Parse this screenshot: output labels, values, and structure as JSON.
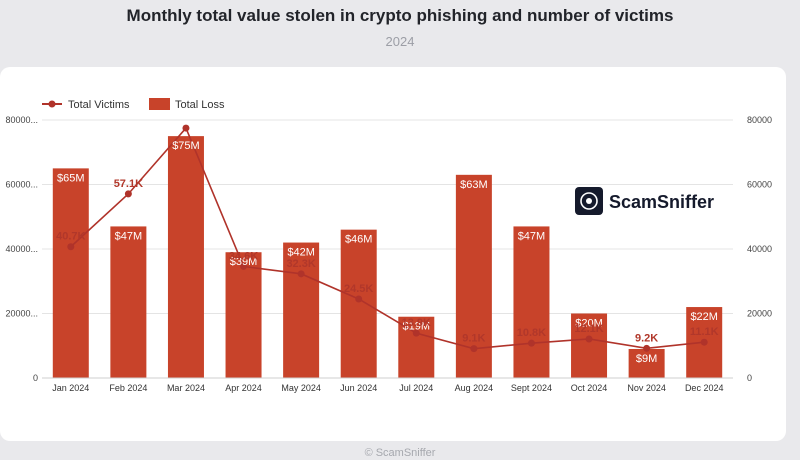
{
  "header": {
    "title": "Monthly total value stolen in crypto phishing and number of victims",
    "subtitle": "2024"
  },
  "footer": {
    "text": "© ScamSniffer"
  },
  "brand": {
    "name": "ScamSniffer",
    "icon": "scamsniffer-logo-icon"
  },
  "colors": {
    "bar": "#c8432a",
    "line": "#b0332a",
    "grid": "#e4e4e4",
    "background": "#e9e9ec"
  },
  "chart_data": {
    "type": "bar",
    "categories": [
      "Jan 2024",
      "Feb 2024",
      "Mar 2024",
      "Apr 2024",
      "May 2024",
      "Jun 2024",
      "Jul 2024",
      "Aug 2024",
      "Sept 2024",
      "Oct 2024",
      "Nov 2024",
      "Dec 2024"
    ],
    "series": [
      {
        "name": "Total Loss",
        "type": "bar",
        "axis": "left",
        "values": [
          65,
          47,
          75,
          39,
          42,
          46,
          19,
          63,
          47,
          20,
          9,
          22
        ],
        "labels": [
          "$65M",
          "$47M",
          "$75M",
          "$39M",
          "$42M",
          "$46M",
          "$19M",
          "$63M",
          "$47M",
          "$20M",
          "$9M",
          "$22M"
        ]
      },
      {
        "name": "Total Victims",
        "type": "line",
        "axis": "right",
        "values": [
          40700,
          57100,
          77500,
          34600,
          32300,
          24500,
          13900,
          9100,
          10800,
          12100,
          9200,
          11100
        ],
        "labels": [
          "40.7K",
          "57.1K",
          "",
          "34.6K",
          "32.3K",
          "24.5K",
          "13.9K",
          "9.1K",
          "10.8K",
          "12.1K",
          "9.2K",
          "11.1K"
        ]
      }
    ],
    "y_left": {
      "ticks": [
        "0",
        "20000...",
        "40000...",
        "60000...",
        "80000..."
      ],
      "ylim": [
        0,
        80000
      ]
    },
    "y_right": {
      "ticks": [
        "0",
        "20000",
        "40000",
        "60000",
        "80000"
      ],
      "ylim": [
        0,
        80000
      ]
    },
    "legend_position": "top-left",
    "grid": true
  }
}
